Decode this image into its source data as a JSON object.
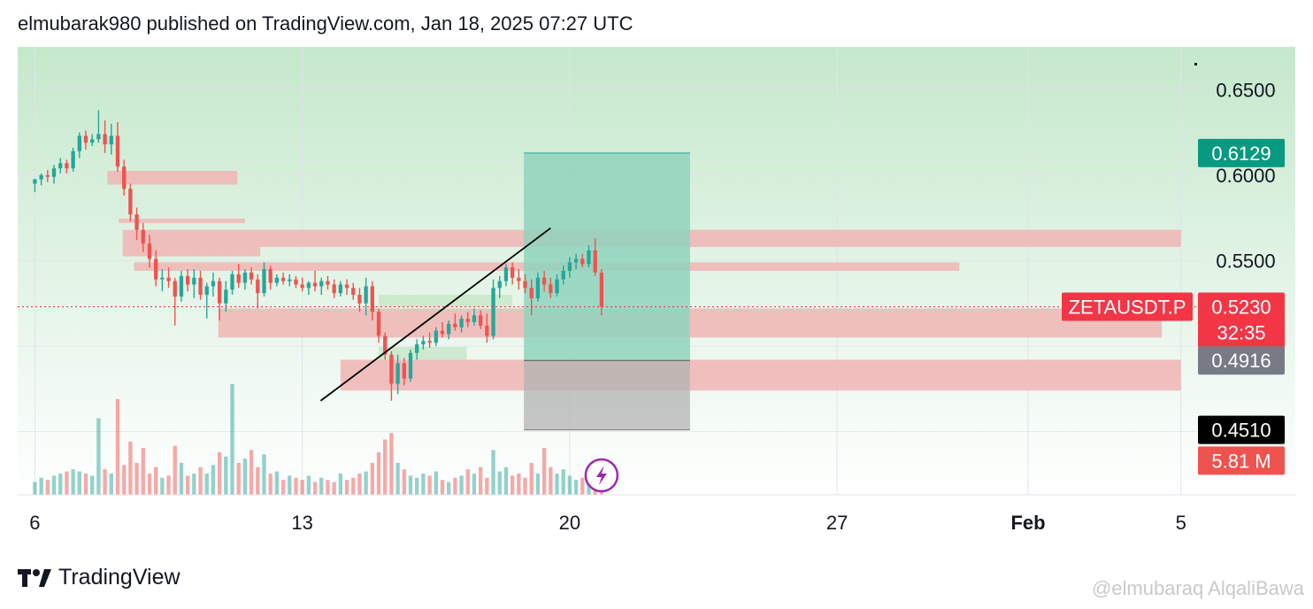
{
  "header": {
    "published_line": "elmubarak980 published on TradingView.com, Jan 18, 2025 07:27 UTC"
  },
  "footer": {
    "brand": "TradingView",
    "logo_icon": "tradingview-logo-icon",
    "watermark": "@elmubaraq AlqaliBawa"
  },
  "colors": {
    "up": "#26a69a",
    "down": "#ef5350",
    "zone_red": "#f0b5b4",
    "zone_green": "#c8e6c9",
    "target_box": "#8fd3bd",
    "stop_box": "#b3b3b3",
    "bg_top": "#c5e8cc",
    "bg_bottom": "#ffffff"
  },
  "chart_data": {
    "type": "candlestick",
    "symbol": "ZETAUSDT.P",
    "x_ticks": [
      "6",
      "13",
      "20",
      "27",
      "Feb",
      "5"
    ],
    "x_tick_days": [
      6,
      13,
      20,
      27,
      32,
      36
    ],
    "y_ticks": [
      "0.6500",
      "0.6000",
      "0.5500"
    ],
    "y_tick_values": [
      0.65,
      0.6,
      0.55
    ],
    "ylim": [
      0.413,
      0.675
    ],
    "xlim": [
      5.55,
      36.4
    ],
    "bar_hours": 4,
    "start_day": 6,
    "price_tags": [
      {
        "label": "0.6129",
        "value": 0.6129,
        "color": "#089981"
      },
      {
        "label": "0.5230",
        "value": 0.523,
        "color": "#f23645",
        "sub": "32:35"
      },
      {
        "label": "0.4916",
        "value": 0.4916,
        "color": "#787b86"
      },
      {
        "label": "0.4510",
        "value": 0.451,
        "color": "#000000"
      },
      {
        "label": "5.81 M",
        "value": 0.433,
        "color": "#ef5350"
      }
    ],
    "symbol_tag": {
      "label": "ZETAUSDT.P",
      "value": 0.523,
      "color": "#f23645"
    },
    "last_price": 0.523,
    "zones": [
      {
        "color": "red",
        "x0": 7.9,
        "x1": 11.3,
        "y0": 0.5945,
        "y1": 0.6025
      },
      {
        "color": "red",
        "x0": 8.2,
        "x1": 11.5,
        "y0": 0.572,
        "y1": 0.5745
      },
      {
        "color": "red",
        "x0": 8.3,
        "x1": 11.9,
        "y0": 0.5525,
        "y1": 0.558
      },
      {
        "color": "red",
        "x0": 8.3,
        "x1": 36.0,
        "y0": 0.558,
        "y1": 0.568
      },
      {
        "color": "red",
        "x0": 8.6,
        "x1": 30.2,
        "y0": 0.544,
        "y1": 0.549
      },
      {
        "color": "red",
        "x0": 10.8,
        "x1": 35.5,
        "y0": 0.505,
        "y1": 0.522
      },
      {
        "color": "red",
        "x0": 14.0,
        "x1": 36.0,
        "y0": 0.474,
        "y1": 0.492
      },
      {
        "color": "green",
        "x0": 15.0,
        "x1": 17.3,
        "y0": 0.492,
        "y1": 0.4995
      },
      {
        "color": "green",
        "x0": 15.0,
        "x1": 18.5,
        "y0": 0.523,
        "y1": 0.53
      }
    ],
    "position": {
      "x0": 18.8,
      "x1": 23.15,
      "entry": 0.4916,
      "target": 0.6129,
      "stop": 0.451
    },
    "trendline": {
      "x0": 13.48,
      "y0": 0.468,
      "x1": 19.5,
      "y1": 0.569
    },
    "candles": [
      [
        0.595,
        0.598,
        0.59,
        0.5975
      ],
      [
        0.5975,
        0.601,
        0.594,
        0.6
      ],
      [
        0.6,
        0.603,
        0.596,
        0.599
      ],
      [
        0.599,
        0.606,
        0.595,
        0.604
      ],
      [
        0.604,
        0.61,
        0.601,
        0.607
      ],
      [
        0.607,
        0.609,
        0.601,
        0.604
      ],
      [
        0.604,
        0.616,
        0.602,
        0.614
      ],
      [
        0.614,
        0.625,
        0.61,
        0.623
      ],
      [
        0.623,
        0.626,
        0.615,
        0.619
      ],
      [
        0.619,
        0.624,
        0.617,
        0.621
      ],
      [
        0.621,
        0.638,
        0.619,
        0.624
      ],
      [
        0.624,
        0.632,
        0.613,
        0.618
      ],
      [
        0.618,
        0.63,
        0.612,
        0.623
      ],
      [
        0.623,
        0.631,
        0.602,
        0.605
      ],
      [
        0.605,
        0.609,
        0.588,
        0.592
      ],
      [
        0.592,
        0.595,
        0.573,
        0.577
      ],
      [
        0.577,
        0.581,
        0.562,
        0.568
      ],
      [
        0.568,
        0.572,
        0.555,
        0.56
      ],
      [
        0.56,
        0.565,
        0.546,
        0.551
      ],
      [
        0.551,
        0.556,
        0.535,
        0.539
      ],
      [
        0.539,
        0.545,
        0.532,
        0.54
      ],
      [
        0.54,
        0.546,
        0.534,
        0.538
      ],
      [
        0.538,
        0.54,
        0.512,
        0.529
      ],
      [
        0.529,
        0.544,
        0.526,
        0.541
      ],
      [
        0.541,
        0.545,
        0.532,
        0.536
      ],
      [
        0.536,
        0.545,
        0.528,
        0.54
      ],
      [
        0.54,
        0.544,
        0.527,
        0.53
      ],
      [
        0.53,
        0.537,
        0.516,
        0.535
      ],
      [
        0.535,
        0.543,
        0.529,
        0.538
      ],
      [
        0.538,
        0.54,
        0.515,
        0.525
      ],
      [
        0.525,
        0.538,
        0.52,
        0.533
      ],
      [
        0.533,
        0.544,
        0.53,
        0.542
      ],
      [
        0.542,
        0.548,
        0.534,
        0.537
      ],
      [
        0.537,
        0.545,
        0.533,
        0.543
      ],
      [
        0.543,
        0.546,
        0.536,
        0.539
      ],
      [
        0.539,
        0.542,
        0.522,
        0.531
      ],
      [
        0.531,
        0.549,
        0.529,
        0.545
      ],
      [
        0.545,
        0.547,
        0.533,
        0.537
      ],
      [
        0.537,
        0.542,
        0.535,
        0.54
      ],
      [
        0.54,
        0.543,
        0.536,
        0.538
      ],
      [
        0.538,
        0.542,
        0.535,
        0.539
      ],
      [
        0.539,
        0.541,
        0.534,
        0.536
      ],
      [
        0.536,
        0.54,
        0.532,
        0.534
      ],
      [
        0.534,
        0.538,
        0.53,
        0.537
      ],
      [
        0.537,
        0.544,
        0.532,
        0.535
      ],
      [
        0.535,
        0.54,
        0.53,
        0.538
      ],
      [
        0.538,
        0.541,
        0.533,
        0.536
      ],
      [
        0.536,
        0.539,
        0.528,
        0.531
      ],
      [
        0.531,
        0.538,
        0.529,
        0.536
      ],
      [
        0.536,
        0.539,
        0.53,
        0.534
      ],
      [
        0.534,
        0.537,
        0.527,
        0.53
      ],
      [
        0.53,
        0.534,
        0.52,
        0.525
      ],
      [
        0.525,
        0.54,
        0.518,
        0.535
      ],
      [
        0.535,
        0.538,
        0.515,
        0.52
      ],
      [
        0.52,
        0.522,
        0.502,
        0.506
      ],
      [
        0.506,
        0.508,
        0.492,
        0.495
      ],
      [
        0.495,
        0.497,
        0.468,
        0.478
      ],
      [
        0.478,
        0.495,
        0.472,
        0.49
      ],
      [
        0.49,
        0.493,
        0.477,
        0.481
      ],
      [
        0.481,
        0.498,
        0.479,
        0.496
      ],
      [
        0.496,
        0.504,
        0.492,
        0.501
      ],
      [
        0.501,
        0.506,
        0.498,
        0.503
      ],
      [
        0.503,
        0.508,
        0.499,
        0.502
      ],
      [
        0.502,
        0.511,
        0.5,
        0.509
      ],
      [
        0.509,
        0.514,
        0.505,
        0.507
      ],
      [
        0.507,
        0.515,
        0.504,
        0.513
      ],
      [
        0.513,
        0.519,
        0.509,
        0.511
      ],
      [
        0.511,
        0.518,
        0.508,
        0.516
      ],
      [
        0.516,
        0.52,
        0.511,
        0.514
      ],
      [
        0.514,
        0.522,
        0.512,
        0.518
      ],
      [
        0.518,
        0.521,
        0.51,
        0.512
      ],
      [
        0.512,
        0.519,
        0.502,
        0.506
      ],
      [
        0.506,
        0.539,
        0.504,
        0.534
      ],
      [
        0.534,
        0.541,
        0.528,
        0.538
      ],
      [
        0.538,
        0.548,
        0.535,
        0.546
      ],
      [
        0.546,
        0.549,
        0.536,
        0.54
      ],
      [
        0.54,
        0.545,
        0.533,
        0.538
      ],
      [
        0.538,
        0.542,
        0.531,
        0.534
      ],
      [
        0.534,
        0.539,
        0.518,
        0.528
      ],
      [
        0.528,
        0.543,
        0.526,
        0.54
      ],
      [
        0.54,
        0.544,
        0.532,
        0.536
      ],
      [
        0.536,
        0.54,
        0.528,
        0.531
      ],
      [
        0.531,
        0.542,
        0.529,
        0.539
      ],
      [
        0.539,
        0.547,
        0.536,
        0.544
      ],
      [
        0.544,
        0.552,
        0.54,
        0.549
      ],
      [
        0.549,
        0.554,
        0.545,
        0.551
      ],
      [
        0.551,
        0.554,
        0.546,
        0.548
      ],
      [
        0.548,
        0.559,
        0.546,
        0.556
      ],
      [
        0.556,
        0.563,
        0.541,
        0.543
      ],
      [
        0.543,
        0.545,
        0.518,
        0.523
      ]
    ],
    "volumes": [
      0.6,
      0.8,
      0.7,
      0.9,
      1.0,
      1.1,
      1.2,
      1.1,
      1.0,
      0.9,
      3.6,
      1.2,
      1.0,
      4.5,
      1.4,
      2.5,
      1.5,
      2.2,
      1.0,
      1.3,
      0.8,
      0.9,
      2.3,
      1.5,
      0.9,
      1.0,
      1.3,
      1.0,
      1.4,
      2.0,
      1.8,
      5.2,
      1.5,
      1.7,
      2.1,
      1.3,
      1.9,
      1.0,
      1.1,
      0.7,
      0.9,
      0.8,
      0.7,
      0.9,
      0.6,
      0.8,
      0.7,
      0.6,
      1.0,
      0.7,
      0.8,
      1.0,
      1.1,
      1.5,
      2.0,
      2.6,
      2.9,
      1.5,
      1.2,
      0.9,
      0.8,
      1.0,
      0.9,
      1.1,
      0.7,
      0.6,
      0.8,
      0.9,
      1.2,
      1.0,
      1.3,
      0.8,
      2.1,
      1.1,
      1.3,
      0.9,
      1.0,
      0.8,
      1.5,
      1.0,
      2.2,
      1.3,
      1.0,
      1.2,
      0.9,
      0.7,
      0.8,
      0.6,
      0.7,
      0.5
    ]
  }
}
